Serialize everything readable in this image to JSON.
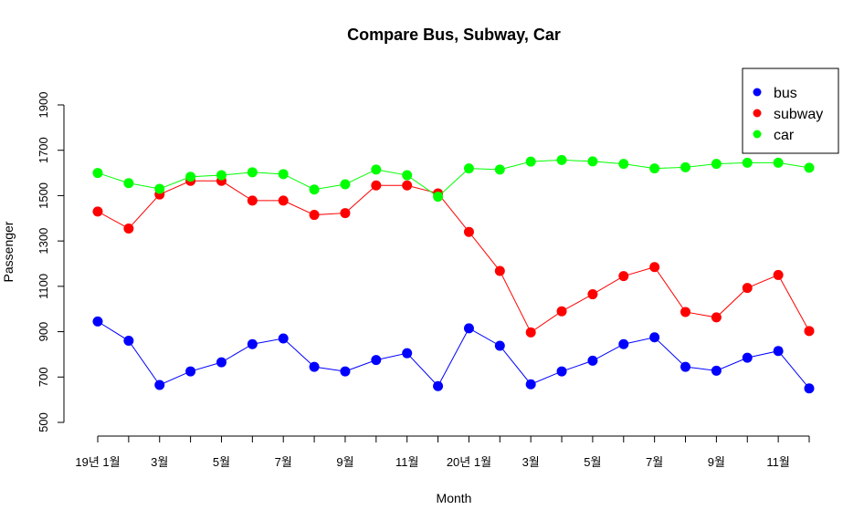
{
  "chart_data": {
    "type": "line",
    "title": "Compare Bus, Subway, Car",
    "xlabel": "Month",
    "ylabel": "Passenger",
    "ylim": [
      500,
      1900
    ],
    "yticks": [
      500,
      700,
      900,
      1100,
      1300,
      1500,
      1700,
      1900
    ],
    "x": [
      1,
      2,
      3,
      4,
      5,
      6,
      7,
      8,
      9,
      10,
      11,
      12,
      13,
      14,
      15,
      16,
      17,
      18,
      19,
      20,
      21,
      22,
      23,
      24
    ],
    "xtick_positions": [
      1,
      3,
      5,
      7,
      9,
      11,
      13,
      15,
      17,
      19,
      21,
      23
    ],
    "xtick_labels": [
      "19년 1월",
      "3월",
      "5월",
      "7월",
      "9월",
      "11월",
      "20년 1월",
      "3월",
      "5월",
      "7월",
      "9월",
      "11월"
    ],
    "legend": {
      "position": "top-right"
    },
    "grid": false,
    "series": [
      {
        "name": "bus",
        "color": "#0000ff",
        "values": [
          945,
          860,
          665,
          725,
          765,
          845,
          870,
          745,
          725,
          775,
          805,
          660,
          915,
          838,
          668,
          725,
          772,
          845,
          875,
          745,
          728,
          785,
          815,
          650
        ]
      },
      {
        "name": "subway",
        "color": "#ff0000",
        "values": [
          1430,
          1355,
          1505,
          1565,
          1565,
          1478,
          1478,
          1415,
          1423,
          1545,
          1545,
          1510,
          1340,
          1168,
          897,
          990,
          1065,
          1145,
          1185,
          987,
          963,
          1093,
          1150,
          903
        ]
      },
      {
        "name": "car",
        "color": "#00ff00",
        "values": [
          1600,
          1555,
          1530,
          1583,
          1590,
          1603,
          1595,
          1527,
          1550,
          1615,
          1590,
          1495,
          1620,
          1615,
          1650,
          1657,
          1651,
          1640,
          1620,
          1625,
          1640,
          1645,
          1645,
          1623
        ]
      }
    ]
  }
}
